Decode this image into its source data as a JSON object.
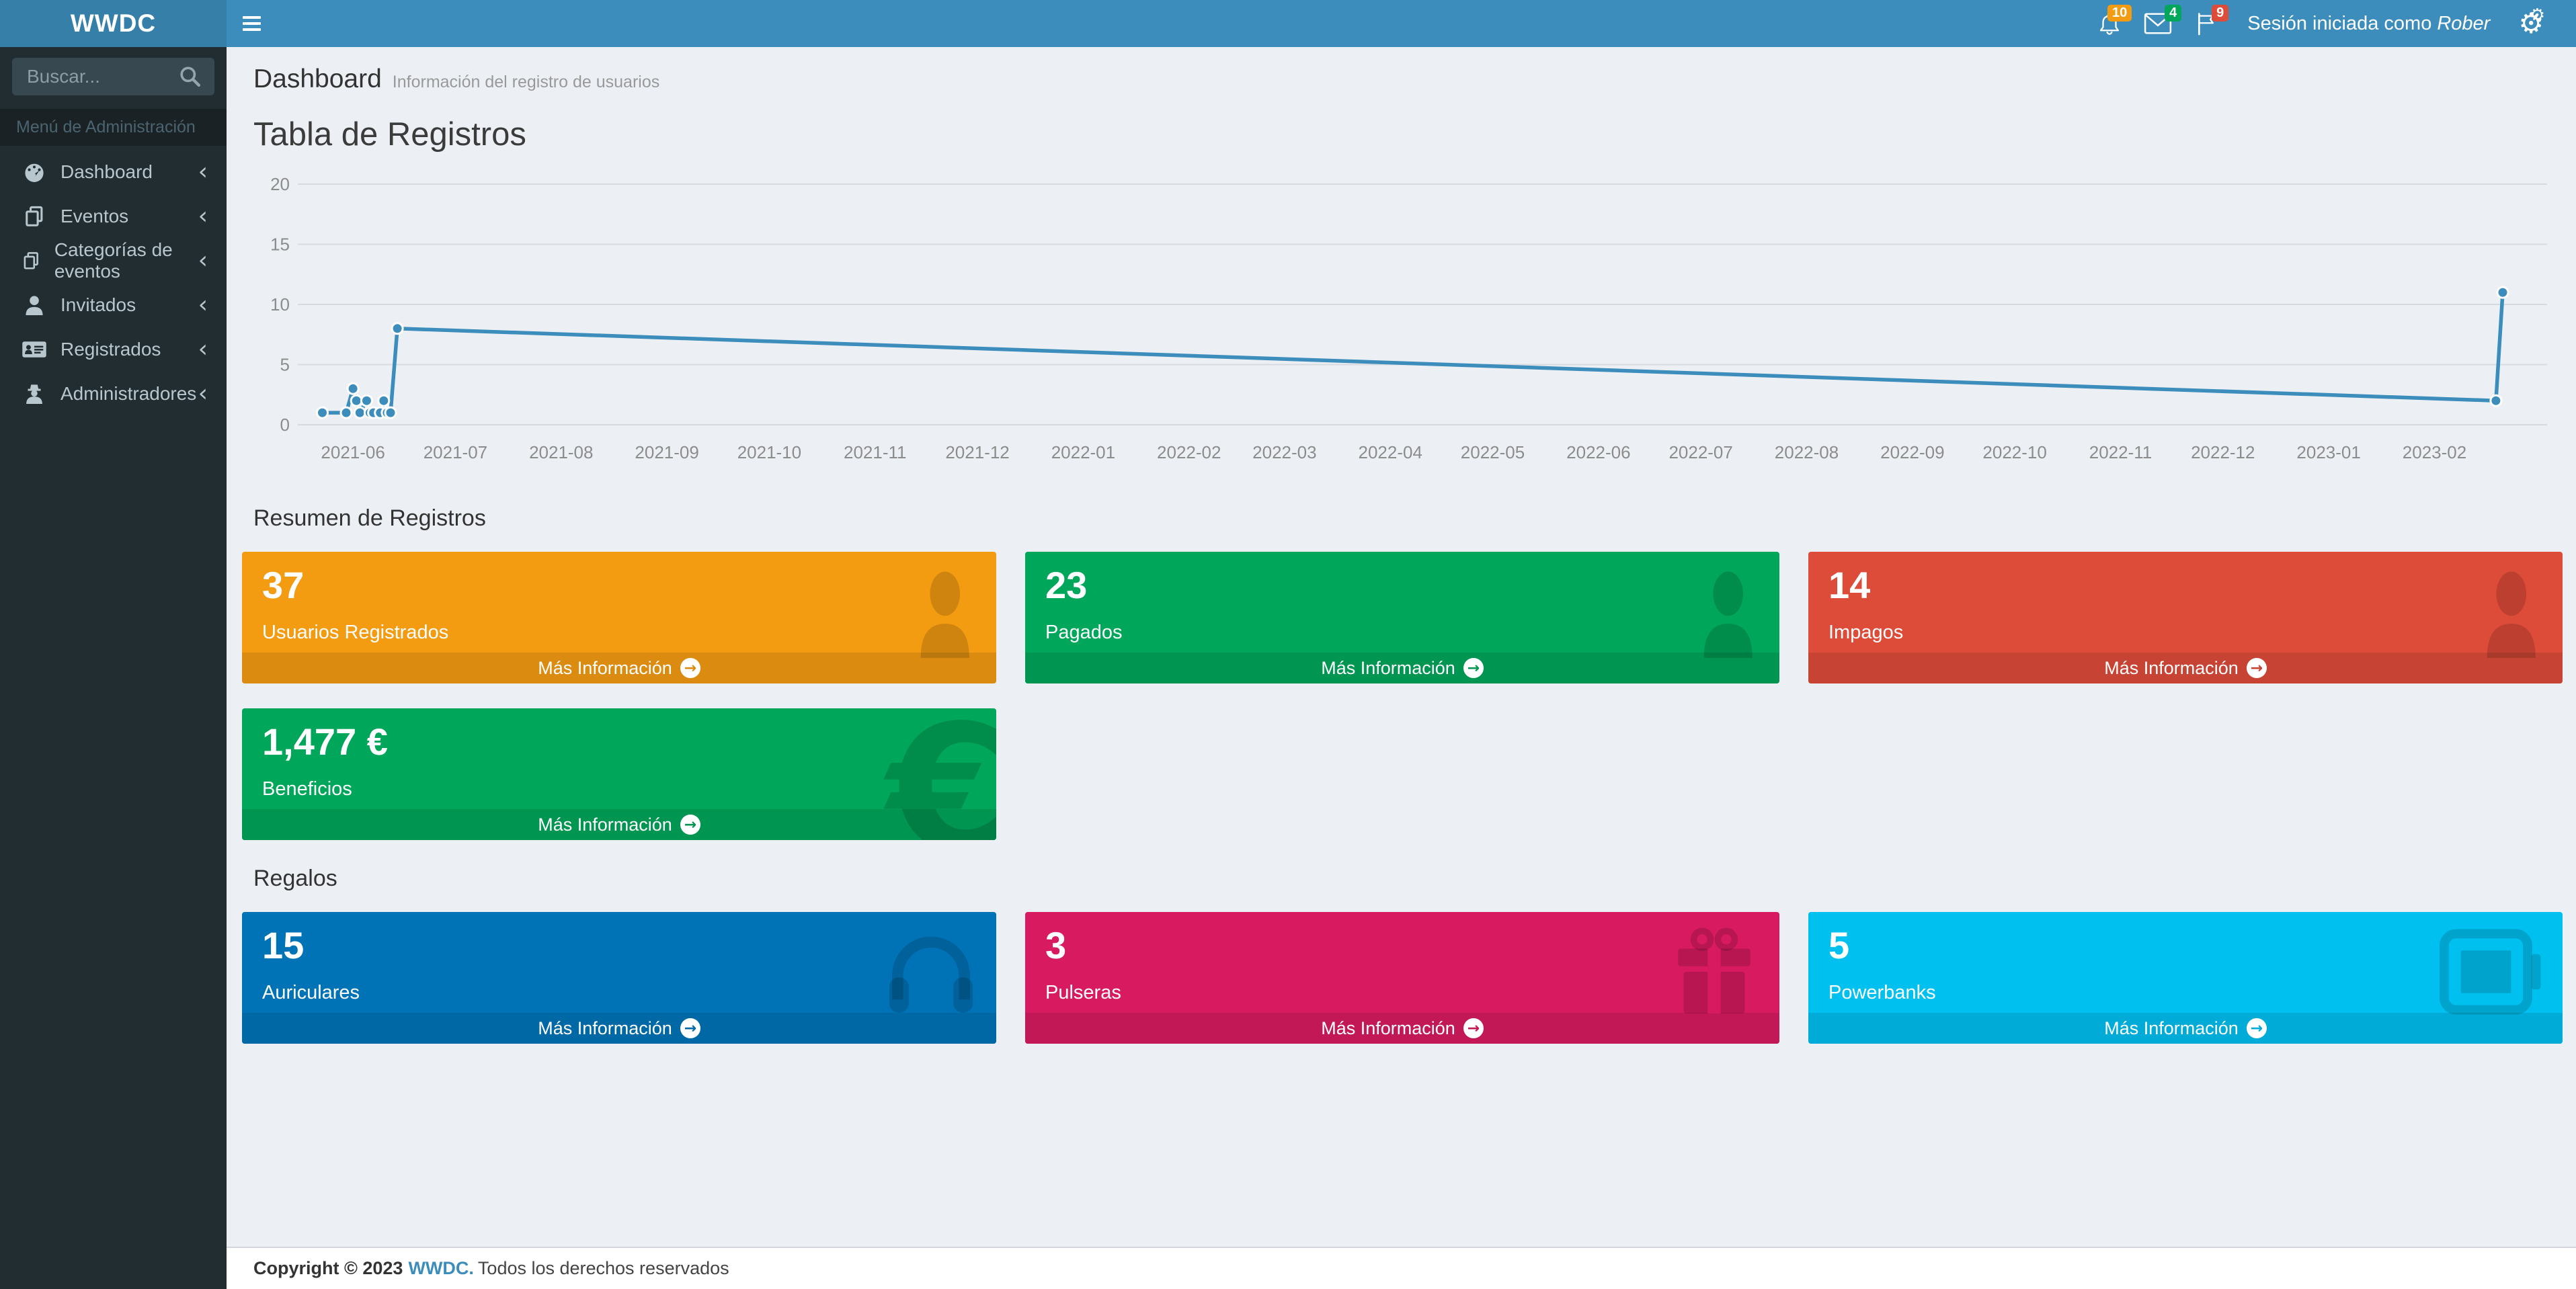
{
  "navbar": {
    "brand": "WWDC",
    "session_prefix": "Sesión iniciada como",
    "session_user": "Rober",
    "badges": {
      "notifications": "10",
      "messages": "4",
      "flags": "9"
    },
    "badge_colors": {
      "notifications": "#f39c12",
      "messages": "#00a65a",
      "flags": "#dd4b39"
    }
  },
  "sidebar": {
    "search_placeholder": "Buscar...",
    "menu_header": "Menú de Administración",
    "items": [
      {
        "label": "Dashboard",
        "icon": "gauge-icon"
      },
      {
        "label": "Eventos",
        "icon": "copy-icon"
      },
      {
        "label": "Categorías de eventos",
        "icon": "copy-icon"
      },
      {
        "label": "Invitados",
        "icon": "user-icon"
      },
      {
        "label": "Registrados",
        "icon": "id-card-icon"
      },
      {
        "label": "Administradores",
        "icon": "user-secret-icon"
      }
    ]
  },
  "header": {
    "title": "Dashboard",
    "subtitle": "Información del registro de usuarios"
  },
  "sections": {
    "chart_title": "Tabla de Registros",
    "summary_title": "Resumen de Registros",
    "gifts_title": "Regalos"
  },
  "strings": {
    "more_info": "Más Información"
  },
  "chart_data": {
    "type": "line",
    "title": "Tabla de Registros",
    "xlabel": "",
    "ylabel": "",
    "ylim": [
      0,
      20
    ],
    "y_ticks": [
      0,
      5,
      10,
      15,
      20
    ],
    "grid": true,
    "legend": "none",
    "line_color": "#3c8dbc",
    "x_domain": [
      "2021-05-17",
      "2023-03-06"
    ],
    "x_ticks": [
      "2021-06",
      "2021-07",
      "2021-08",
      "2021-09",
      "2021-10",
      "2021-11",
      "2021-12",
      "2022-01",
      "2022-02",
      "2022-03",
      "2022-04",
      "2022-05",
      "2022-06",
      "2022-07",
      "2022-08",
      "2022-09",
      "2022-10",
      "2022-11",
      "2022-12",
      "2023-01",
      "2023-02"
    ],
    "series": [
      {
        "name": "Registros",
        "color": "#3c8dbc",
        "points": [
          [
            "2021-05-23",
            1
          ],
          [
            "2021-05-30",
            1
          ],
          [
            "2021-06-01",
            3
          ],
          [
            "2021-06-02",
            2
          ],
          [
            "2021-06-03",
            1
          ],
          [
            "2021-06-05",
            2
          ],
          [
            "2021-06-06",
            1
          ],
          [
            "2021-06-07",
            1
          ],
          [
            "2021-06-09",
            1
          ],
          [
            "2021-06-10",
            2
          ],
          [
            "2021-06-11",
            1
          ],
          [
            "2021-06-12",
            1
          ],
          [
            "2021-06-14",
            8
          ],
          [
            "2023-02-19",
            2
          ],
          [
            "2023-02-21",
            11
          ]
        ]
      }
    ]
  },
  "summary_boxes": [
    {
      "value": "37",
      "label": "Usuarios Registrados",
      "color": "#f39c12",
      "footer_color": "#db8c10",
      "icon": "user-icon"
    },
    {
      "value": "23",
      "label": "Pagados",
      "color": "#00a65a",
      "footer_color": "#009551",
      "icon": "user-icon"
    },
    {
      "value": "14",
      "label": "Impagos",
      "color": "#dd4b39",
      "footer_color": "#c74333",
      "icon": "user-icon"
    }
  ],
  "benefit_boxes": [
    {
      "value": "1,477 €",
      "label": "Beneficios",
      "color": "#00a65a",
      "footer_color": "#009551",
      "icon": "euro-icon"
    }
  ],
  "gift_boxes": [
    {
      "value": "15",
      "label": "Auriculares",
      "color": "#0073b7",
      "footer_color": "#0068a4",
      "icon": "headphones-icon"
    },
    {
      "value": "3",
      "label": "Pulseras",
      "color": "#d81b60",
      "footer_color": "#c21856",
      "icon": "gift-icon"
    },
    {
      "value": "5",
      "label": "Powerbanks",
      "color": "#00c0ef",
      "footer_color": "#00acd7",
      "icon": "battery-icon"
    }
  ],
  "footer": {
    "copyright": "Copyright © 2023",
    "brand_link": "WWDC.",
    "rights": "Todos los derechos reservados"
  }
}
